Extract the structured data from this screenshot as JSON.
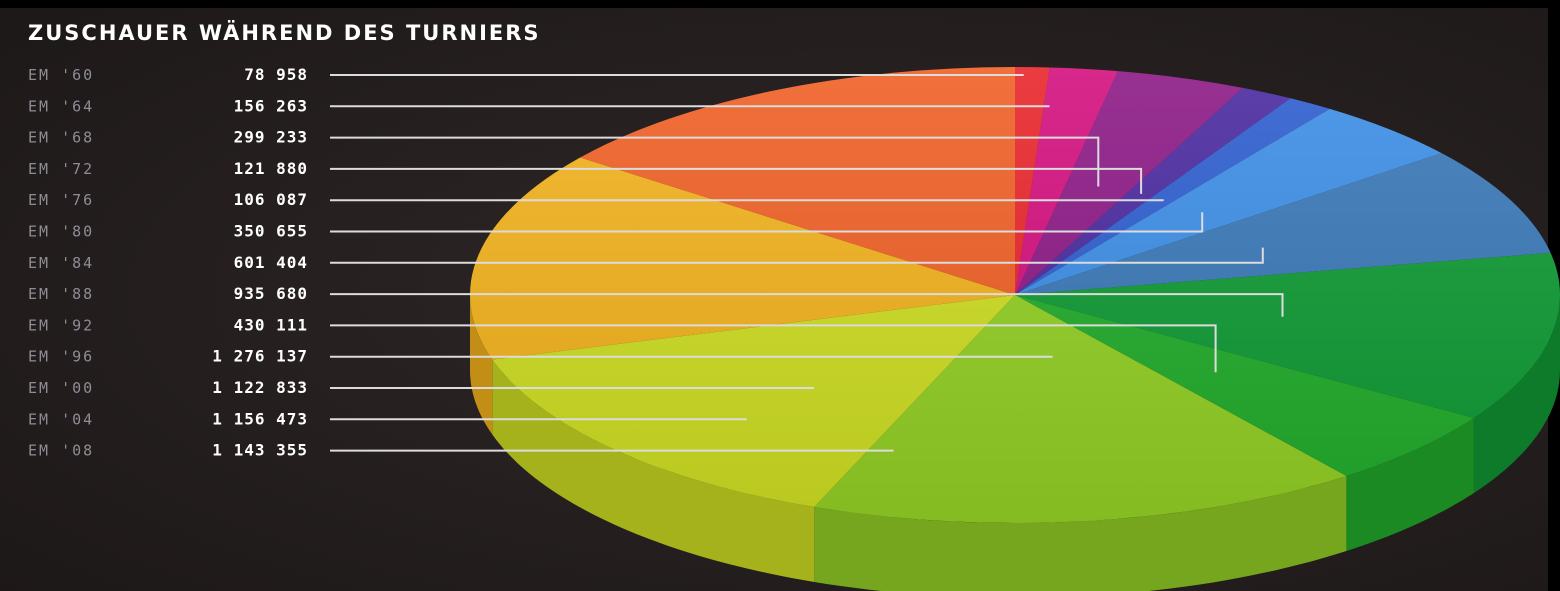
{
  "chart_data": {
    "type": "pie",
    "title": "ZUSCHAUER WÄHREND DES TURNIERS",
    "categories": [
      "EM '60",
      "EM '64",
      "EM '68",
      "EM '72",
      "EM '76",
      "EM '80",
      "EM '84",
      "EM '88",
      "EM '92",
      "EM '96",
      "EM '00",
      "EM '04",
      "EM '08"
    ],
    "values": [
      78958,
      156263,
      299233,
      121880,
      106087,
      350655,
      601404,
      935680,
      430111,
      1276137,
      1122833,
      1156473,
      1143355
    ],
    "value_labels": [
      "78 958",
      "156 263",
      "299 233",
      "121 880",
      "106 087",
      "350 655",
      "601 404",
      "935 680",
      "430 111",
      "1 276 137",
      "1 122 833",
      "1 156 473",
      "1 143 355"
    ],
    "colors": [
      "#e8262c",
      "#d4107e",
      "#8c1a86",
      "#4b2aa0",
      "#2e5fd0",
      "#3d8ee6",
      "#3a78b8",
      "#109a35",
      "#22ad2c",
      "#92d024",
      "#cede22",
      "#f2b21c",
      "#f06025"
    ],
    "legend": "left"
  }
}
